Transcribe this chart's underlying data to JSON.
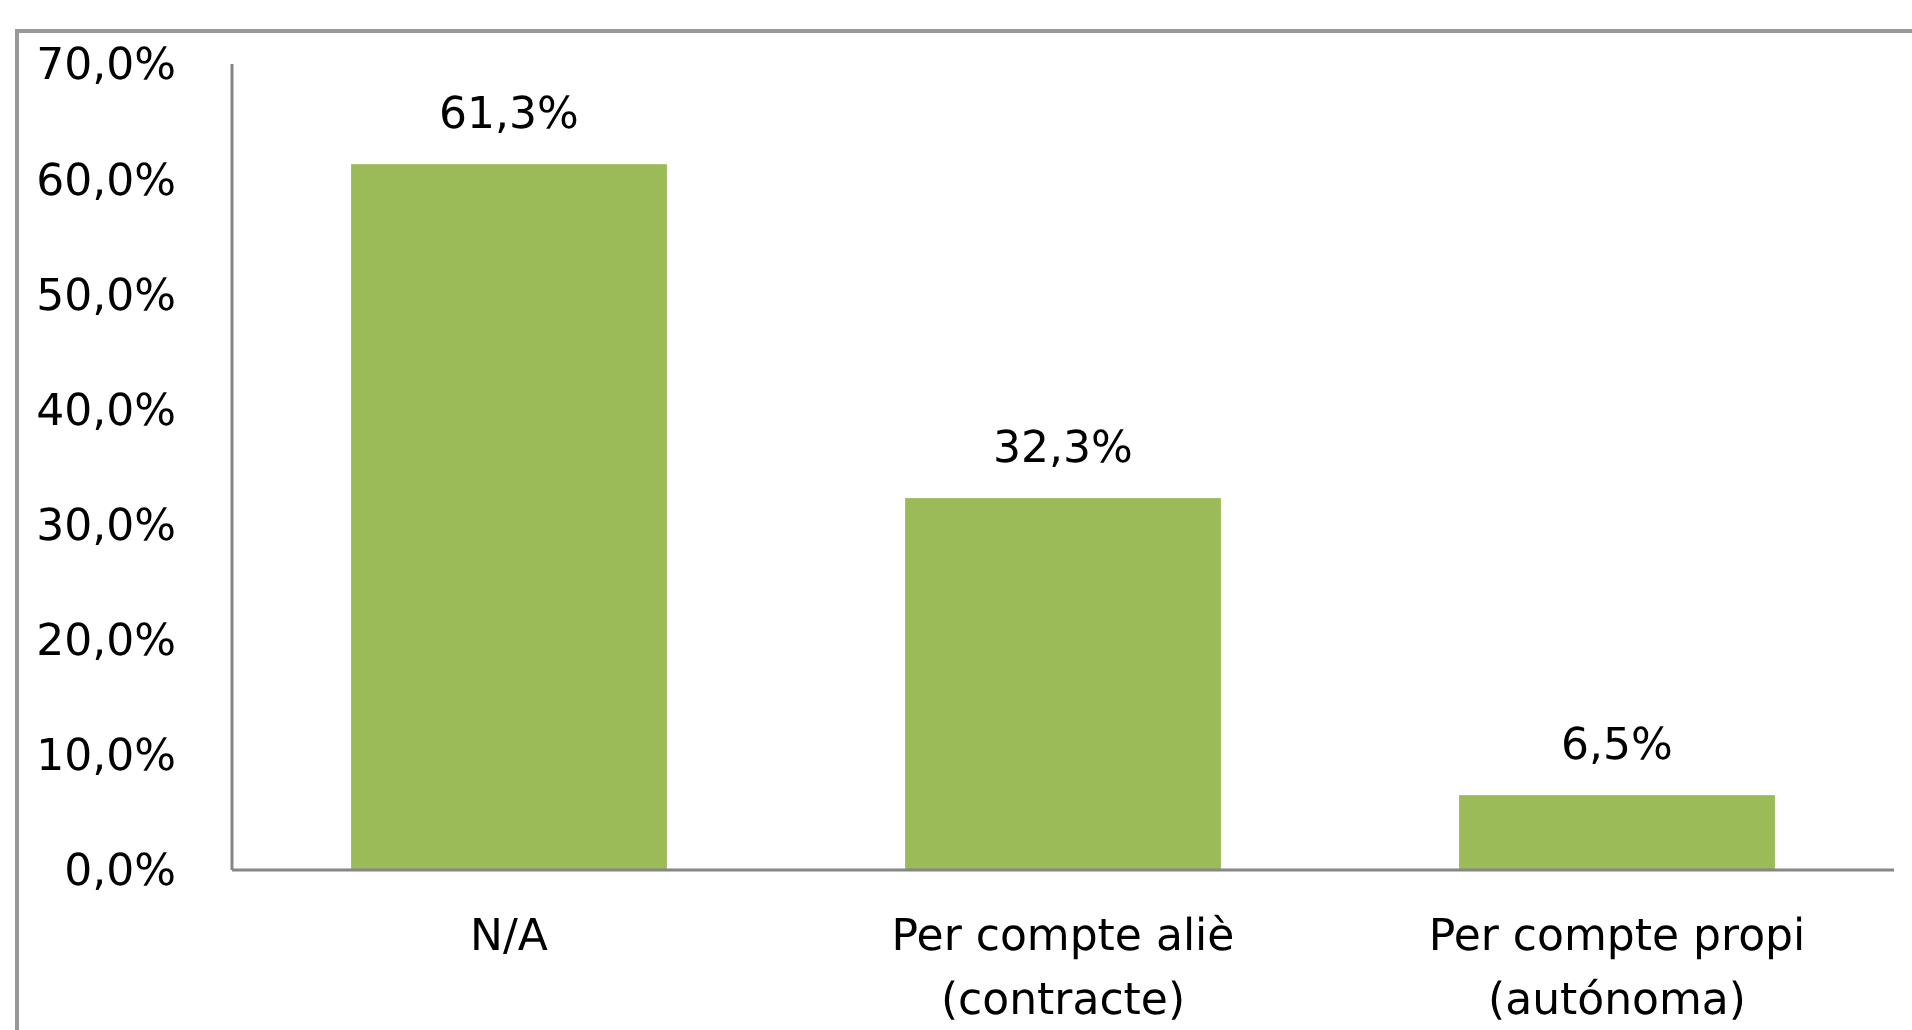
{
  "chart_data": {
    "type": "bar",
    "categories": [
      "N/A",
      "Per compte aliè (contracte)",
      "Per compte propi (autónoma)"
    ],
    "values": [
      61.3,
      32.3,
      6.5
    ],
    "color": "#9bbb59",
    "value_labels": [
      "61,3%",
      "32,3%",
      "6,5%"
    ],
    "ylim": [
      0,
      70
    ],
    "yticks": [
      {
        "value": 0,
        "label": "0,0%"
      },
      {
        "value": 10,
        "label": "10,0%"
      },
      {
        "value": 20,
        "label": "20,0%"
      },
      {
        "value": 30,
        "label": "30,0%"
      },
      {
        "value": 40,
        "label": "40,0%"
      },
      {
        "value": 50,
        "label": "50,0%"
      },
      {
        "value": 60,
        "label": "60,0%"
      },
      {
        "value": 70,
        "label": "70,0%"
      }
    ],
    "grid": false
  }
}
